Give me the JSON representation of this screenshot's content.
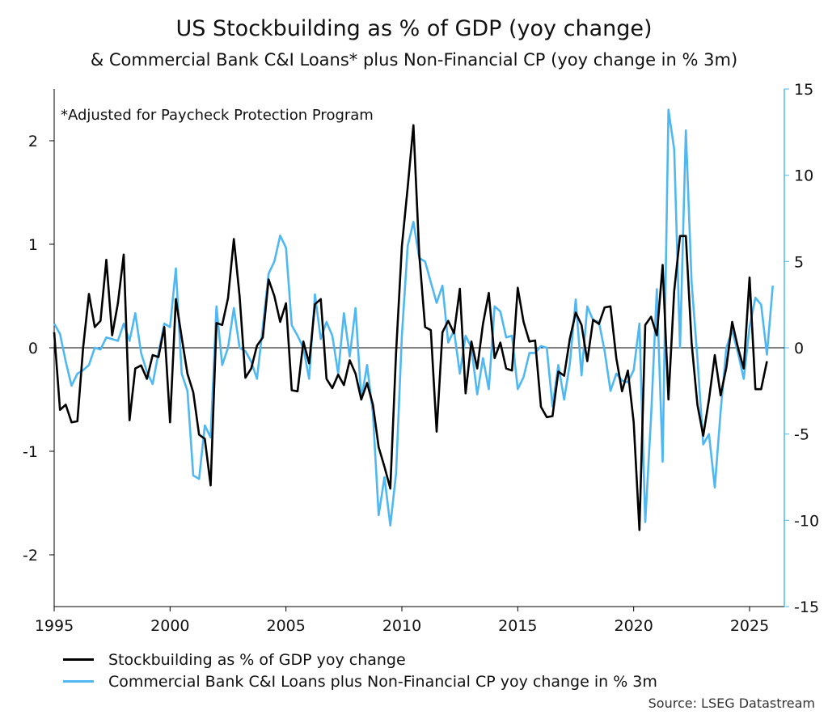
{
  "title": "US Stockbuilding as % of GDP (yoy change)",
  "subtitle": "& Commercial Bank C&I Loans* plus Non-Financial CP (yoy change in % 3m)",
  "source": "Source: LSEG Datastream",
  "colors": {
    "stock": "#000000",
    "loans": "#4fb8f2",
    "zero_line": "#000000",
    "axis": "#000000"
  },
  "chart_data": {
    "type": "line",
    "annotation": "*Adjusted for Paycheck Protection Program",
    "x_ticks": [
      "1995",
      "2000",
      "2005",
      "2010",
      "2015",
      "2020",
      "2025"
    ],
    "xlim": [
      1995,
      2026.5
    ],
    "left_axis": {
      "ylim": [
        -2.5,
        2.5
      ],
      "ticks": [
        "-2",
        "-1",
        "0",
        "1",
        "2"
      ]
    },
    "right_axis": {
      "ylim": [
        -15,
        15
      ],
      "ticks": [
        "-15",
        "-10",
        "-5",
        "0",
        "5",
        "10",
        "15"
      ]
    },
    "grid": false,
    "legend_position": "bottom",
    "series": [
      {
        "name": "Stockbuilding as % of GDP yoy change",
        "axis": "left",
        "x": [
          1995.0,
          1995.25,
          1995.5,
          1995.75,
          1996.0,
          1996.25,
          1996.5,
          1996.75,
          1997.0,
          1997.25,
          1997.5,
          1997.75,
          1998.0,
          1998.25,
          1998.5,
          1998.75,
          1999.0,
          1999.25,
          1999.5,
          1999.75,
          2000.0,
          2000.25,
          2000.5,
          2000.75,
          2001.0,
          2001.25,
          2001.5,
          2001.75,
          2002.0,
          2002.25,
          2002.5,
          2002.75,
          2003.0,
          2003.25,
          2003.5,
          2003.75,
          2004.0,
          2004.25,
          2004.5,
          2004.75,
          2005.0,
          2005.25,
          2005.5,
          2005.75,
          2006.0,
          2006.25,
          2006.5,
          2006.75,
          2007.0,
          2007.25,
          2007.5,
          2007.75,
          2008.0,
          2008.25,
          2008.5,
          2008.75,
          2009.0,
          2009.25,
          2009.5,
          2009.75,
          2010.0,
          2010.25,
          2010.5,
          2010.75,
          2011.0,
          2011.25,
          2011.5,
          2011.75,
          2012.0,
          2012.25,
          2012.5,
          2012.75,
          2013.0,
          2013.25,
          2013.5,
          2013.75,
          2014.0,
          2014.25,
          2014.5,
          2014.75,
          2015.0,
          2015.25,
          2015.5,
          2015.75,
          2016.0,
          2016.25,
          2016.5,
          2016.75,
          2017.0,
          2017.25,
          2017.5,
          2017.75,
          2018.0,
          2018.25,
          2018.5,
          2018.75,
          2019.0,
          2019.25,
          2019.5,
          2019.75,
          2020.0,
          2020.25,
          2020.5,
          2020.75,
          2021.0,
          2021.25,
          2021.5,
          2021.75,
          2022.0,
          2022.25,
          2022.5,
          2022.75,
          2023.0,
          2023.25,
          2023.5,
          2023.75,
          2024.0,
          2024.25,
          2024.5,
          2024.75,
          2025.0,
          2025.25,
          2025.5,
          2025.75
        ],
        "values": [
          0.15,
          -0.6,
          -0.55,
          -0.72,
          -0.71,
          0.0,
          0.52,
          0.2,
          0.26,
          0.85,
          0.12,
          0.43,
          0.9,
          -0.7,
          -0.2,
          -0.17,
          -0.3,
          -0.07,
          -0.09,
          0.2,
          -0.72,
          0.47,
          0.1,
          -0.25,
          -0.43,
          -0.84,
          -0.88,
          -1.33,
          0.24,
          0.22,
          0.48,
          1.05,
          0.5,
          -0.29,
          -0.2,
          0.02,
          0.1,
          0.66,
          0.5,
          0.25,
          0.43,
          -0.41,
          -0.42,
          0.06,
          -0.15,
          0.42,
          0.47,
          -0.3,
          -0.39,
          -0.26,
          -0.36,
          -0.12,
          -0.25,
          -0.5,
          -0.34,
          -0.55,
          -0.96,
          -1.15,
          -1.36,
          -0.05,
          0.98,
          1.55,
          2.15,
          0.9,
          0.2,
          0.17,
          -0.81,
          0.15,
          0.26,
          0.14,
          0.57,
          -0.44,
          0.06,
          -0.2,
          0.23,
          0.53,
          -0.1,
          0.05,
          -0.2,
          -0.22,
          0.58,
          0.25,
          0.06,
          0.07,
          -0.57,
          -0.67,
          -0.66,
          -0.23,
          -0.27,
          0.09,
          0.34,
          0.22,
          -0.13,
          0.27,
          0.23,
          0.39,
          0.4,
          -0.1,
          -0.42,
          -0.22,
          -0.72,
          -1.76,
          0.22,
          0.3,
          0.12,
          0.8,
          -0.5,
          0.55,
          1.08,
          1.08,
          0.05,
          -0.55,
          -0.85,
          -0.5,
          -0.07,
          -0.46,
          -0.19,
          0.25,
          0.0,
          -0.2,
          0.68,
          -0.4,
          -0.4,
          -0.13
        ]
      },
      {
        "name": "Commercial Bank C&I Loans plus Non-Financial CP yoy change in % 3m",
        "axis": "right",
        "x": [
          1995.0,
          1995.25,
          1995.5,
          1995.75,
          1996.0,
          1996.25,
          1996.5,
          1996.75,
          1997.0,
          1997.25,
          1997.5,
          1997.75,
          1998.0,
          1998.25,
          1998.5,
          1998.75,
          1999.0,
          1999.25,
          1999.5,
          1999.75,
          2000.0,
          2000.25,
          2000.5,
          2000.75,
          2001.0,
          2001.25,
          2001.5,
          2001.75,
          2002.0,
          2002.25,
          2002.5,
          2002.75,
          2003.0,
          2003.25,
          2003.5,
          2003.75,
          2004.0,
          2004.25,
          2004.5,
          2004.75,
          2005.0,
          2005.25,
          2005.5,
          2005.75,
          2006.0,
          2006.25,
          2006.5,
          2006.75,
          2007.0,
          2007.25,
          2007.5,
          2007.75,
          2008.0,
          2008.25,
          2008.5,
          2008.75,
          2009.0,
          2009.25,
          2009.5,
          2009.75,
          2010.0,
          2010.25,
          2010.5,
          2010.75,
          2011.0,
          2011.25,
          2011.5,
          2011.75,
          2012.0,
          2012.25,
          2012.5,
          2012.75,
          2013.0,
          2013.25,
          2013.5,
          2013.75,
          2014.0,
          2014.25,
          2014.5,
          2014.75,
          2015.0,
          2015.25,
          2015.5,
          2015.75,
          2016.0,
          2016.25,
          2016.5,
          2016.75,
          2017.0,
          2017.25,
          2017.5,
          2017.75,
          2018.0,
          2018.25,
          2018.5,
          2018.75,
          2019.0,
          2019.25,
          2019.5,
          2019.75,
          2020.0,
          2020.25,
          2020.5,
          2020.75,
          2021.0,
          2021.25,
          2021.5,
          2021.75,
          2022.0,
          2022.25,
          2022.5,
          2022.75,
          2023.0,
          2023.25,
          2023.5,
          2023.75,
          2024.0,
          2024.25,
          2024.5,
          2024.75,
          2025.0,
          2025.25,
          2025.5,
          2025.75,
          2026.0
        ],
        "values": [
          1.4,
          0.8,
          -0.8,
          -2.2,
          -1.5,
          -1.3,
          -1.0,
          0.0,
          -0.1,
          0.6,
          0.5,
          0.4,
          1.4,
          0.4,
          2.0,
          -0.3,
          -1.4,
          -2.1,
          -0.3,
          1.4,
          1.2,
          4.6,
          -1.5,
          -2.5,
          -7.4,
          -7.6,
          -4.5,
          -5.2,
          2.4,
          -1.0,
          0.0,
          2.3,
          0.0,
          -0.2,
          -0.8,
          -1.8,
          1.2,
          4.3,
          5.0,
          6.5,
          5.8,
          1.3,
          0.7,
          0.0,
          -1.8,
          3.1,
          0.5,
          1.5,
          0.7,
          -1.5,
          2.0,
          -0.5,
          2.3,
          -3.0,
          -1.0,
          -3.8,
          -9.7,
          -7.5,
          -10.3,
          -7.3,
          0.7,
          5.9,
          7.3,
          5.2,
          5.0,
          3.8,
          2.6,
          3.6,
          0.3,
          1.0,
          -1.5,
          0.7,
          0.0,
          -2.7,
          -0.6,
          -2.4,
          2.4,
          2.1,
          0.6,
          0.7,
          -2.4,
          -1.7,
          -0.3,
          -0.3,
          0.1,
          0.0,
          -3.4,
          -1.0,
          -3.0,
          -0.9,
          2.8,
          -1.6,
          2.4,
          1.6,
          1.5,
          -0.2,
          -2.5,
          -1.5,
          -1.9,
          -2.0,
          -1.3,
          1.4,
          -10.1,
          -4.0,
          3.4,
          -6.6,
          13.8,
          11.5,
          0.0,
          12.6,
          3.8,
          -0.6,
          -5.6,
          -5.0,
          -8.1,
          -3.7,
          0.0,
          1.0,
          -0.3,
          -1.8,
          1.2,
          2.9,
          2.5,
          -0.4,
          3.6
        ]
      }
    ]
  },
  "legend": [
    {
      "label": "Stockbuilding as % of GDP yoy change",
      "color": "#000000"
    },
    {
      "label": "Commercial Bank C&I Loans plus Non-Financial CP yoy change in % 3m",
      "color": "#4fb8f2"
    }
  ]
}
